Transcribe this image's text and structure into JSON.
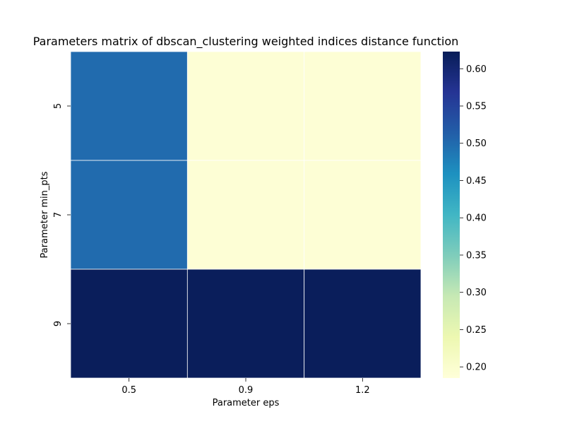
{
  "chart_data": {
    "type": "heatmap",
    "title": "Parameters matrix of dbscan_clustering weighted indices distance function",
    "xlabel": "Parameter eps",
    "ylabel": "Parameter min_pts",
    "x_categories": [
      "0.5",
      "0.9",
      "1.2"
    ],
    "y_categories": [
      "5",
      "7",
      "9"
    ],
    "values": [
      [
        0.5,
        0.19,
        0.19
      ],
      [
        0.5,
        0.19,
        0.19
      ],
      [
        0.62,
        0.62,
        0.62
      ]
    ],
    "colorscale": "YlGnBu",
    "vmin": 0.185,
    "vmax": 0.623,
    "colorbar_ticks": [
      "0.20",
      "0.25",
      "0.30",
      "0.35",
      "0.40",
      "0.45",
      "0.50",
      "0.55",
      "0.60"
    ]
  }
}
